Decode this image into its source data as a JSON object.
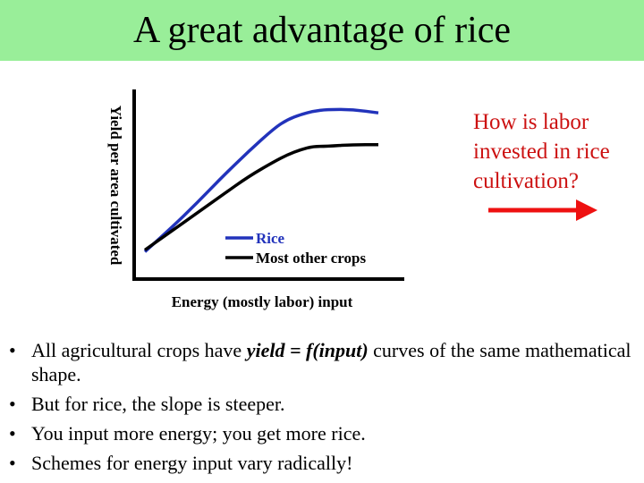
{
  "slide": {
    "title": "A great advantage of rice",
    "callout": "How is labor invested in rice cultivation?",
    "colors": {
      "title_band": "#99ee99",
      "callout_text": "#cc1111",
      "arrow": "#ee1111"
    },
    "bullets": [
      {
        "before": "All agricultural crops have ",
        "emphasis": "yield = f(input)",
        "after": " curves of the same mathematical shape."
      },
      {
        "text": "But for rice, the slope is steeper."
      },
      {
        "text": "You input more energy; you get more rice."
      },
      {
        "text": "Schemes for energy input vary radically!"
      }
    ],
    "bullet_glyph": "•"
  },
  "chart_data": {
    "type": "line",
    "xlabel": "Energy (mostly labor) input",
    "ylabel": "Yield per area cultivated",
    "xlim": [
      0,
      10
    ],
    "ylim": [
      0,
      10
    ],
    "grid": false,
    "legend_position": "bottom-right",
    "series": [
      {
        "name": "Rice",
        "color": "#2233bb",
        "x": [
          0,
          1,
          2,
          3,
          4,
          5,
          5.5,
          6,
          6.5,
          7,
          8,
          9
        ],
        "y": [
          0.3,
          1.7,
          3.2,
          4.8,
          6.3,
          7.7,
          8.2,
          8.5,
          8.7,
          8.8,
          8.8,
          8.6
        ]
      },
      {
        "name": "Most other crops",
        "color": "#000000",
        "x": [
          0,
          1,
          2,
          3,
          4,
          5,
          5.5,
          6,
          6.5,
          7,
          8,
          9
        ],
        "y": [
          0.4,
          1.5,
          2.6,
          3.7,
          4.8,
          5.7,
          6.1,
          6.4,
          6.6,
          6.6,
          6.7,
          6.7
        ]
      }
    ]
  }
}
